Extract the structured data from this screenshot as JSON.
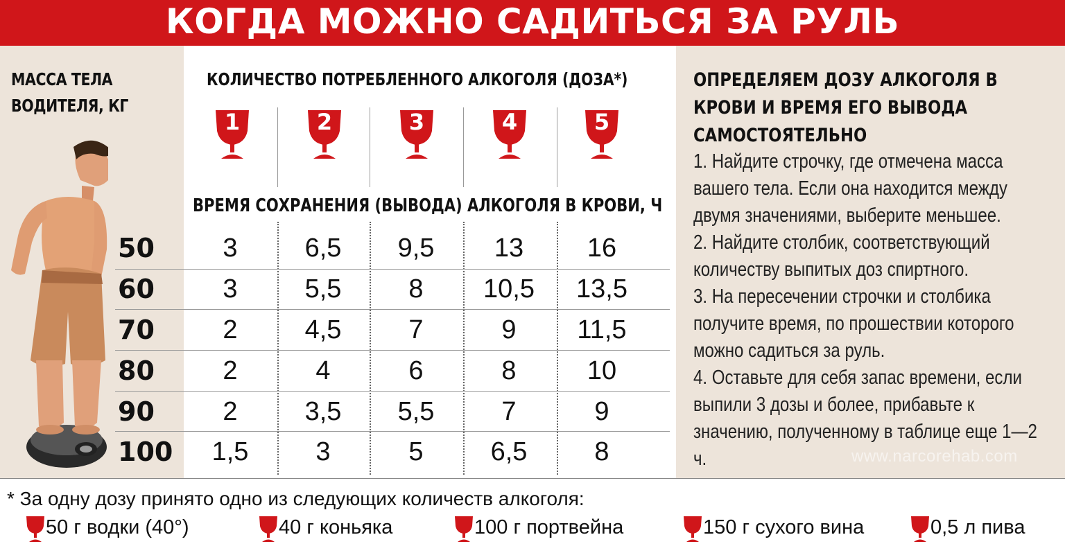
{
  "title": "КОГДА МОЖНО САДИТЬСЯ ЗА РУЛЬ",
  "mass_label": "МАССА ТЕЛА ВОДИТЕЛЯ, КГ",
  "dose_header": "КОЛИЧЕСТВО ПОТРЕБЛЕННОГО АЛКОГОЛЯ (ДОЗА*)",
  "time_header": "ВРЕМЯ СОХРАНЕНИЯ (ВЫВОДА) АЛКОГОЛЯ В КРОВИ, Ч",
  "doses": [
    "1",
    "2",
    "3",
    "4",
    "5"
  ],
  "rows": [
    {
      "mass": "50",
      "values": [
        "3",
        "6,5",
        "9,5",
        "13",
        "16"
      ]
    },
    {
      "mass": "60",
      "values": [
        "3",
        "5,5",
        "8",
        "10,5",
        "13,5"
      ]
    },
    {
      "mass": "70",
      "values": [
        "2",
        "4,5",
        "7",
        "9",
        "11,5"
      ]
    },
    {
      "mass": "80",
      "values": [
        "2",
        "4",
        "6",
        "8",
        "10"
      ]
    },
    {
      "mass": "90",
      "values": [
        "2",
        "3,5",
        "5,5",
        "7",
        "9"
      ]
    },
    {
      "mass": "100",
      "values": [
        "1,5",
        "3",
        "5",
        "6,5",
        "8"
      ]
    }
  ],
  "right_title": "ОПРЕДЕЛЯЕМ ДОЗУ АЛКОГОЛЯ В КРОВИ И ВРЕМЯ ЕГО ВЫВОДА САМОСТОЯТЕЛЬНО",
  "instructions": [
    "1. Найдите строчку, где отмечена масса вашего тела. Если она находится между двумя значениями, выберите меньшее.",
    "2. Найдите столбик, соответствующий количеству выпитых доз спиртного.",
    "3. На пересечении строчки и столбика получите время, по прошествии которого можно садиться за руль.",
    "4. Оставьте для себя запас времени, если выпили 3 дозы и более, прибавьте к значению, полученному в таблице еще 1—2 ч."
  ],
  "watermark": "www.narcorehab.com",
  "footnote": "* За одну дозу принято одно из следующих количеств алкоголя:",
  "legend": [
    "50 г водки (40°)",
    "40 г коньяка",
    "100 г портвейна",
    "150 г сухого вина",
    "0,5 л пива"
  ],
  "colors": {
    "accent": "#d0161a",
    "panel": "#ede4da"
  },
  "icons": {
    "dose": "wine-glass-icon",
    "person": "man-on-scale-illustration"
  }
}
